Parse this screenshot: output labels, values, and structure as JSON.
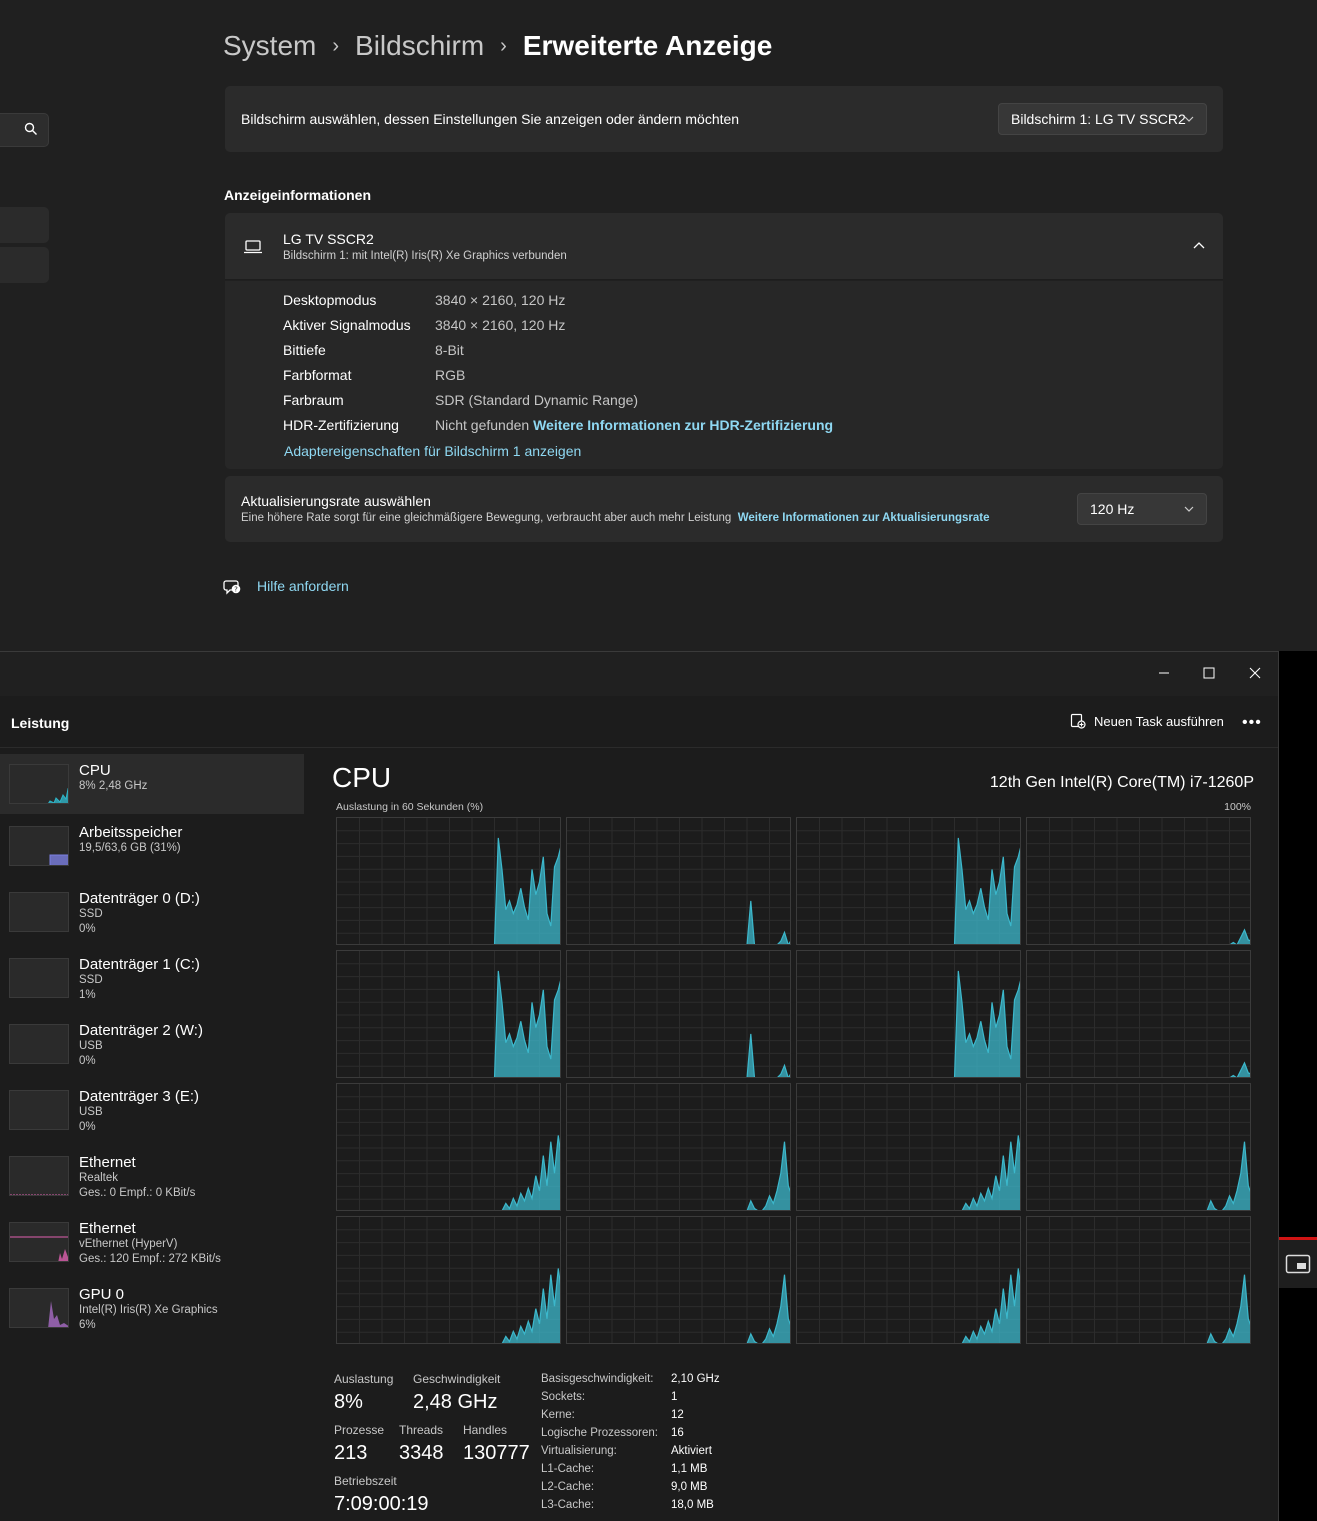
{
  "settings": {
    "breadcrumb": [
      "System",
      "Bildschirm"
    ],
    "breadcrumb_current": "Erweiterte Anzeige",
    "select_display_label": "Bildschirm auswählen, dessen Einstellungen Sie anzeigen oder ändern möchten",
    "select_display_value": "Bildschirm 1: LG TV SSCR2",
    "section_title": "Anzeigeinformationen",
    "display_name": "LG TV SSCR2",
    "display_sub": "Bildschirm 1: mit Intel(R) Iris(R) Xe Graphics verbunden",
    "info": [
      {
        "label": "Desktopmodus",
        "value": "3840 × 2160, 120 Hz"
      },
      {
        "label": "Aktiver Signalmodus",
        "value": "3840 × 2160, 120 Hz"
      },
      {
        "label": "Bittiefe",
        "value": "8-Bit"
      },
      {
        "label": "Farbformat",
        "value": "RGB"
      },
      {
        "label": "Farbraum",
        "value": "SDR (Standard Dynamic Range)"
      },
      {
        "label": "HDR-Zertifizierung",
        "value": "Nicht gefunden"
      }
    ],
    "hdr_link": "Weitere Informationen zur HDR-Zertifizierung",
    "adapter_link": "Adaptereigenschaften für Bildschirm 1 anzeigen",
    "refresh_title": "Aktualisierungsrate auswählen",
    "refresh_desc": "Eine höhere Rate sorgt für eine gleichmäßigere Bewegung, verbraucht aber auch mehr Leistung",
    "refresh_link": "Weitere Informationen zur Aktualisierungsrate",
    "refresh_value": "120 Hz",
    "help_link": "Hilfe anfordern"
  },
  "taskmgr": {
    "page_title": "Leistung",
    "run_task": "Neuen Task ausführen",
    "more": "•••",
    "sidebar": [
      {
        "name": "CPU",
        "lines": [
          "8% 2,48 GHz"
        ],
        "color": "#2fb5c8",
        "kind": "cpu"
      },
      {
        "name": "Arbeitsspeicher",
        "lines": [
          "19,5/63,6 GB (31%)"
        ],
        "color": "#7a7ee0",
        "kind": "mem"
      },
      {
        "name": "Datenträger 0 (D:)",
        "lines": [
          "SSD",
          "0%"
        ],
        "color": "#2fb5a0",
        "kind": "disk"
      },
      {
        "name": "Datenträger 1 (C:)",
        "lines": [
          "SSD",
          "1%"
        ],
        "color": "#2fb5a0",
        "kind": "disk"
      },
      {
        "name": "Datenträger 2 (W:)",
        "lines": [
          "USB",
          "0%"
        ],
        "color": "#2fb5a0",
        "kind": "disk"
      },
      {
        "name": "Datenträger 3 (E:)",
        "lines": [
          "USB",
          "0%"
        ],
        "color": "#2fb5a0",
        "kind": "disk"
      },
      {
        "name": "Ethernet",
        "lines": [
          "Realtek",
          "Ges.: 0 Empf.: 0 KBit/s"
        ],
        "color": "#e060b0",
        "kind": "net0"
      },
      {
        "name": "Ethernet",
        "lines": [
          "vEthernet (HyperV)",
          "Ges.: 120 Empf.: 272 KBit/s"
        ],
        "color": "#e060b0",
        "kind": "net1"
      },
      {
        "name": "GPU 0",
        "lines": [
          "Intel(R) Iris(R) Xe Graphics",
          "6%"
        ],
        "color": "#b070d0",
        "kind": "gpu"
      }
    ],
    "cpu_title": "CPU",
    "cpu_model": "12th Gen Intel(R) Core(TM) i7-1260P",
    "graph_label": "Auslastung in 60 Sekunden (%)",
    "graph_max": "100%",
    "graph_color": "#3cb8cc",
    "stats": {
      "util_label": "Auslastung",
      "util_value": "8%",
      "speed_label": "Geschwindigkeit",
      "speed_value": "2,48 GHz",
      "proc_label": "Prozesse",
      "proc_value": "213",
      "threads_label": "Threads",
      "threads_value": "3348",
      "handles_label": "Handles",
      "handles_value": "130777",
      "uptime_label": "Betriebszeit",
      "uptime_value": "7:09:00:19"
    },
    "specs": [
      {
        "k": "Basisgeschwindigkeit:",
        "v": "2,10 GHz"
      },
      {
        "k": "Sockets:",
        "v": "1"
      },
      {
        "k": "Kerne:",
        "v": "12"
      },
      {
        "k": "Logische Prozessoren:",
        "v": "16"
      },
      {
        "k": "Virtualisierung:",
        "v": "Aktiviert"
      },
      {
        "k": "L1-Cache:",
        "v": "1,1 MB"
      },
      {
        "k": "L2-Cache:",
        "v": "9,0 MB"
      },
      {
        "k": "L3-Cache:",
        "v": "18,0 MB"
      }
    ]
  },
  "chart_data": {
    "type": "area",
    "title": "Auslastung in 60 Sekunden (%)",
    "ylim": [
      0,
      100
    ],
    "series": [
      {
        "values": [
          0,
          0,
          0,
          0,
          0,
          0,
          0,
          0,
          0,
          0,
          0,
          0,
          0,
          0,
          0,
          0,
          0,
          0,
          0,
          0,
          0,
          0,
          0,
          0,
          0,
          0,
          0,
          0,
          0,
          0,
          0,
          0,
          0,
          0,
          0,
          0,
          0,
          0,
          0,
          0,
          0,
          0,
          0,
          85,
          60,
          28,
          35,
          25,
          32,
          45,
          30,
          20,
          60,
          40,
          50,
          70,
          25,
          15,
          62,
          70,
          82
        ]
      },
      {
        "values": [
          0,
          0,
          0,
          0,
          0,
          0,
          0,
          0,
          0,
          0,
          0,
          0,
          0,
          0,
          0,
          0,
          0,
          0,
          0,
          0,
          0,
          0,
          0,
          0,
          0,
          0,
          0,
          0,
          0,
          0,
          0,
          0,
          0,
          0,
          0,
          0,
          0,
          0,
          0,
          0,
          0,
          0,
          0,
          0,
          0,
          0,
          0,
          0,
          0,
          35,
          0,
          0,
          0,
          0,
          0,
          0,
          0,
          3,
          10,
          0,
          5
        ]
      },
      {
        "values": [
          0,
          0,
          0,
          0,
          0,
          0,
          0,
          0,
          0,
          0,
          0,
          0,
          0,
          0,
          0,
          0,
          0,
          0,
          0,
          0,
          0,
          0,
          0,
          0,
          0,
          0,
          0,
          0,
          0,
          0,
          0,
          0,
          0,
          0,
          0,
          0,
          0,
          0,
          0,
          0,
          0,
          0,
          0,
          0,
          0,
          0,
          0,
          0,
          0,
          0,
          0,
          0,
          0,
          0,
          0,
          0,
          0,
          0,
          0,
          0,
          0
        ]
      }
    ]
  }
}
